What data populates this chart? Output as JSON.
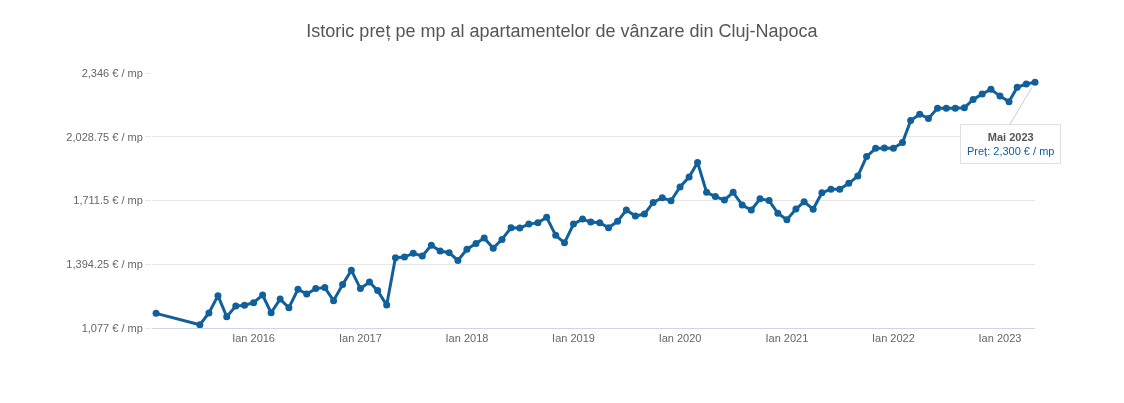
{
  "chart_data": {
    "type": "line",
    "title": "Istoric preț pe mp al apartamentelor de vânzare din Cluj-Napoca",
    "x": [
      "2015-02",
      "2015-07",
      "2015-08",
      "2015-09",
      "2015-10",
      "2015-11",
      "2015-12",
      "2016-01",
      "2016-02",
      "2016-03",
      "2016-04",
      "2016-05",
      "2016-06",
      "2016-07",
      "2016-08",
      "2016-09",
      "2016-10",
      "2016-11",
      "2016-12",
      "2017-01",
      "2017-02",
      "2017-03",
      "2017-04",
      "2017-05",
      "2017-06",
      "2017-07",
      "2017-08",
      "2017-09",
      "2017-10",
      "2017-11",
      "2017-12",
      "2018-01",
      "2018-02",
      "2018-03",
      "2018-04",
      "2018-05",
      "2018-06",
      "2018-07",
      "2018-08",
      "2018-09",
      "2018-10",
      "2018-11",
      "2018-12",
      "2019-01",
      "2019-02",
      "2019-03",
      "2019-04",
      "2019-05",
      "2019-06",
      "2019-07",
      "2019-08",
      "2019-09",
      "2019-10",
      "2019-11",
      "2019-12",
      "2020-01",
      "2020-02",
      "2020-03",
      "2020-04",
      "2020-05",
      "2020-06",
      "2020-07",
      "2020-08",
      "2020-09",
      "2020-10",
      "2020-11",
      "2020-12",
      "2021-01",
      "2021-02",
      "2021-03",
      "2021-04",
      "2021-05",
      "2021-06",
      "2021-07",
      "2021-08",
      "2021-09",
      "2021-10",
      "2021-11",
      "2021-12",
      "2022-01",
      "2022-02",
      "2022-03",
      "2022-04",
      "2022-05",
      "2022-06",
      "2022-07",
      "2022-08",
      "2022-09",
      "2022-10",
      "2022-11",
      "2022-12",
      "2023-01",
      "2023-02",
      "2023-03",
      "2023-04",
      "2023-05"
    ],
    "series": [
      {
        "color": "#11609a",
        "values": [
          1150,
          1093,
          1152,
          1238,
          1133,
          1186,
          1190,
          1203,
          1241,
          1153,
          1221,
          1178,
          1270,
          1246,
          1273,
          1278,
          1213,
          1293,
          1364,
          1273,
          1306,
          1263,
          1191,
          1427,
          1430,
          1449,
          1435,
          1489,
          1460,
          1452,
          1413,
          1469,
          1498,
          1525,
          1474,
          1518,
          1576,
          1575,
          1594,
          1601,
          1628,
          1538,
          1501,
          1594,
          1619,
          1604,
          1601,
          1576,
          1608,
          1664,
          1634,
          1644,
          1702,
          1725,
          1710,
          1779,
          1828,
          1901,
          1752,
          1731,
          1714,
          1752,
          1689,
          1664,
          1720,
          1711,
          1648,
          1616,
          1669,
          1705,
          1668,
          1750,
          1768,
          1768,
          1797,
          1833,
          1930,
          1971,
          1973,
          1971,
          2000,
          2109,
          2141,
          2120,
          2170,
          2170,
          2170,
          2173,
          2214,
          2241,
          2265,
          2231,
          2203,
          2275,
          2291,
          2300
        ]
      }
    ],
    "xlim": [
      "2015-01-18",
      "2023-05-01"
    ],
    "xticks": [
      {
        "value": "2016-01",
        "label": "Ian 2016"
      },
      {
        "value": "2017-01",
        "label": "Ian 2017"
      },
      {
        "value": "2018-01",
        "label": "Ian 2018"
      },
      {
        "value": "2019-01",
        "label": "Ian 2019"
      },
      {
        "value": "2020-01",
        "label": "Ian 2020"
      },
      {
        "value": "2021-01",
        "label": "Ian 2021"
      },
      {
        "value": "2022-01",
        "label": "Ian 2022"
      },
      {
        "value": "2023-01",
        "label": "Ian 2023"
      }
    ],
    "ylim": [
      1077,
      2346
    ],
    "yticks": [
      {
        "value": 1077,
        "label": "1,077 € / mp"
      },
      {
        "value": 1394.25,
        "label": "1,394.25 € / mp"
      },
      {
        "value": 1711.5,
        "label": "1,711.5 € / mp"
      },
      {
        "value": 2028.75,
        "label": "2,028.75 € / mp"
      },
      {
        "value": 2346,
        "label": "2,346 € / mp"
      }
    ],
    "grid": "y",
    "marker": "circle",
    "line_style": "solid",
    "annotations": [
      {
        "text": "Mai 2023\nPreț: 2,300 € / mp",
        "x": "2023-05",
        "y": 2300
      }
    ]
  }
}
